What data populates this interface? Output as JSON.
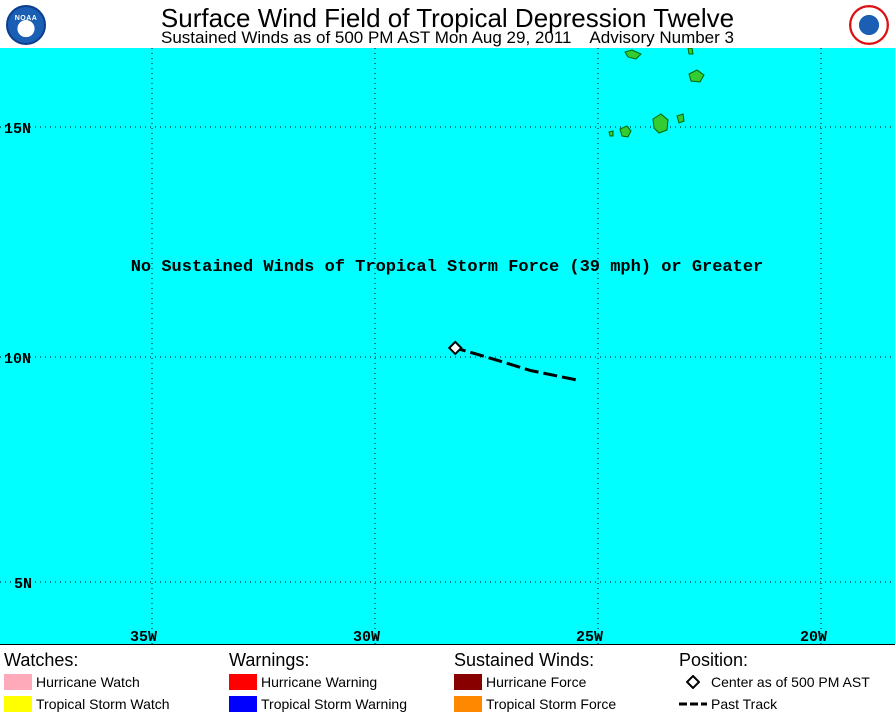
{
  "header": {
    "title": "Surface Wind Field of Tropical Depression Twelve",
    "subtitle": "Sustained Winds as of 500 PM AST Mon Aug 29, 2011    Advisory Number 3",
    "left_logo": "noaa-logo",
    "left_logo_text": "NOAA",
    "right_logo": "nws-logo"
  },
  "map": {
    "background": "#00ffff",
    "notice": "No Sustained Winds of Tropical Storm Force (39 mph) or Greater",
    "lat_labels": [
      "15N",
      "10N",
      "5N"
    ],
    "lon_labels": [
      "35W",
      "30W",
      "25W",
      "20W"
    ],
    "storm_center": {
      "lon": -28.2,
      "lat": 10.2
    },
    "past_track": [
      {
        "lon": -25.5,
        "lat": 9.5
      },
      {
        "lon": -26.5,
        "lat": 9.7
      },
      {
        "lon": -27.5,
        "lat": 10.0
      },
      {
        "lon": -28.2,
        "lat": 10.2
      }
    ],
    "land_color": "#33cc33"
  },
  "legend": {
    "watches": {
      "title": "Watches:",
      "items": [
        {
          "label": "Hurricane Watch",
          "color": "#ffaabb"
        },
        {
          "label": "Tropical Storm Watch",
          "color": "#ffff00"
        }
      ]
    },
    "warnings": {
      "title": "Warnings:",
      "items": [
        {
          "label": "Hurricane Warning",
          "color": "#ff0000"
        },
        {
          "label": "Tropical Storm Warning",
          "color": "#0000ff"
        }
      ]
    },
    "winds": {
      "title": "Sustained Winds:",
      "items": [
        {
          "label": "Hurricane Force",
          "color": "#880000"
        },
        {
          "label": "Tropical Storm Force",
          "color": "#ff8800"
        }
      ]
    },
    "position": {
      "title": "Position:",
      "items": [
        {
          "label": "Center as of 500 PM AST",
          "icon": "diamond-icon"
        },
        {
          "label": "Past Track",
          "icon": "dashed-line-icon"
        }
      ]
    }
  }
}
